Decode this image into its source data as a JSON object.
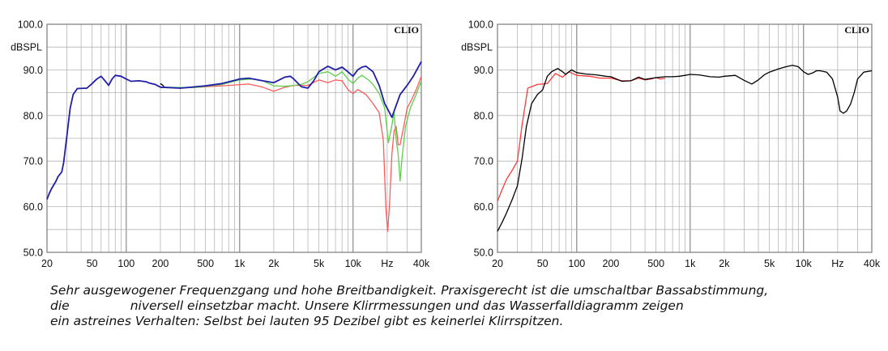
{
  "chart_data": [
    {
      "type": "line",
      "brand": "CLIO",
      "ylabel": "dBSPL",
      "xscale": "log",
      "xlim": [
        20,
        40000
      ],
      "ylim": [
        50,
        100
      ],
      "yticks": [
        "100.0",
        "90.0",
        "80.0",
        "70.0",
        "60.0",
        "50.0"
      ],
      "xticks": [
        {
          "f": 20,
          "label": "20"
        },
        {
          "f": 50,
          "label": "50"
        },
        {
          "f": 100,
          "label": "100"
        },
        {
          "f": 200,
          "label": "200"
        },
        {
          "f": 500,
          "label": "500"
        },
        {
          "f": 1000,
          "label": "1k"
        },
        {
          "f": 2000,
          "label": "2k"
        },
        {
          "f": 5000,
          "label": "5k"
        },
        {
          "f": 10000,
          "label": "10k"
        },
        {
          "f": 20000,
          "label": "Hz"
        },
        {
          "f": 40000,
          "label": "40k"
        }
      ],
      "grid": true,
      "series": [
        {
          "color": "#ff5a5a",
          "points": [
            [
              200,
              86.2
            ],
            [
              300,
              86.0
            ],
            [
              500,
              86.3
            ],
            [
              800,
              86.6
            ],
            [
              1200,
              86.9
            ],
            [
              1600,
              86.2
            ],
            [
              2000,
              85.3
            ],
            [
              2500,
              86.2
            ],
            [
              3000,
              86.6
            ],
            [
              4000,
              86.6
            ],
            [
              5000,
              87.8
            ],
            [
              6000,
              87.2
            ],
            [
              7000,
              87.8
            ],
            [
              8000,
              87.6
            ],
            [
              9000,
              85.7
            ],
            [
              10000,
              84.8
            ],
            [
              11000,
              85.7
            ],
            [
              13000,
              84.6
            ],
            [
              15000,
              82.6
            ],
            [
              17000,
              80.6
            ],
            [
              18500,
              74.6
            ],
            [
              19500,
              59.6
            ],
            [
              20200,
              54.6
            ],
            [
              21000,
              60.6
            ],
            [
              22000,
              71.6
            ],
            [
              23000,
              76.6
            ],
            [
              24000,
              77.6
            ],
            [
              25000,
              73.6
            ],
            [
              26000,
              73.6
            ],
            [
              28000,
              77.6
            ],
            [
              30000,
              81.6
            ],
            [
              33000,
              83.6
            ],
            [
              36000,
              85.6
            ],
            [
              40000,
              88.6
            ]
          ]
        },
        {
          "color": "#5fcf4a",
          "points": [
            [
              200,
              86.2
            ],
            [
              400,
              86.1
            ],
            [
              700,
              86.8
            ],
            [
              1000,
              87.8
            ],
            [
              1300,
              88.0
            ],
            [
              1600,
              87.6
            ],
            [
              2000,
              86.5
            ],
            [
              2500,
              86.4
            ],
            [
              3000,
              86.6
            ],
            [
              3500,
              86.8
            ],
            [
              4000,
              87.4
            ],
            [
              5000,
              89.2
            ],
            [
              6000,
              89.6
            ],
            [
              7000,
              88.6
            ],
            [
              8000,
              89.6
            ],
            [
              9000,
              88.0
            ],
            [
              10000,
              87.0
            ],
            [
              11000,
              88.2
            ],
            [
              12000,
              88.8
            ],
            [
              14000,
              87.6
            ],
            [
              15000,
              86.8
            ],
            [
              17000,
              84.8
            ],
            [
              19000,
              81.6
            ],
            [
              20500,
              74.0
            ],
            [
              21500,
              76.5
            ],
            [
              23000,
              80.6
            ],
            [
              24000,
              74.6
            ],
            [
              25000,
              71.6
            ],
            [
              26000,
              65.6
            ],
            [
              27000,
              70.6
            ],
            [
              29000,
              77.6
            ],
            [
              32000,
              81.6
            ],
            [
              36000,
              84.6
            ],
            [
              40000,
              87.6
            ]
          ]
        },
        {
          "color": "#000000",
          "points": [
            [
              200,
              87.0
            ],
            [
              215,
              86.4
            ]
          ]
        },
        {
          "color": "#1f1fa8",
          "points": [
            [
              20,
              61.6
            ],
            [
              21,
              63.0
            ],
            [
              22,
              64.0
            ],
            [
              24,
              65.6
            ],
            [
              25,
              66.6
            ],
            [
              27,
              67.6
            ],
            [
              28,
              69.6
            ],
            [
              30,
              75.6
            ],
            [
              32,
              81.6
            ],
            [
              34,
              84.6
            ],
            [
              37,
              85.9
            ],
            [
              45,
              86.0
            ],
            [
              50,
              87.0
            ],
            [
              55,
              88.0
            ],
            [
              60,
              88.6
            ],
            [
              65,
              87.6
            ],
            [
              70,
              86.6
            ],
            [
              75,
              88.0
            ],
            [
              80,
              88.8
            ],
            [
              90,
              88.6
            ],
            [
              100,
              88.0
            ],
            [
              110,
              87.5
            ],
            [
              130,
              87.6
            ],
            [
              150,
              87.4
            ],
            [
              160,
              87.1
            ],
            [
              180,
              86.8
            ],
            [
              200,
              86.2
            ],
            [
              300,
              86.0
            ],
            [
              500,
              86.5
            ],
            [
              700,
              87.0
            ],
            [
              1000,
              88.0
            ],
            [
              1200,
              88.2
            ],
            [
              1600,
              87.6
            ],
            [
              2000,
              87.2
            ],
            [
              2500,
              88.4
            ],
            [
              2800,
              88.6
            ],
            [
              3000,
              88.0
            ],
            [
              3500,
              86.3
            ],
            [
              4000,
              86.0
            ],
            [
              4500,
              87.6
            ],
            [
              5000,
              89.6
            ],
            [
              6000,
              90.8
            ],
            [
              7000,
              90.0
            ],
            [
              8000,
              90.6
            ],
            [
              9000,
              89.6
            ],
            [
              10000,
              88.6
            ],
            [
              11000,
              90.0
            ],
            [
              12000,
              90.6
            ],
            [
              13000,
              90.8
            ],
            [
              15000,
              89.6
            ],
            [
              17000,
              86.6
            ],
            [
              19000,
              82.6
            ],
            [
              21000,
              80.6
            ],
            [
              22000,
              79.6
            ],
            [
              23500,
              81.6
            ],
            [
              26000,
              84.6
            ],
            [
              30000,
              86.6
            ],
            [
              34000,
              88.6
            ],
            [
              40000,
              91.8
            ]
          ]
        }
      ]
    },
    {
      "type": "line",
      "brand": "CLIO",
      "ylabel": "dBSPL",
      "xscale": "log",
      "xlim": [
        20,
        40000
      ],
      "ylim": [
        50,
        100
      ],
      "yticks": [
        "100.0",
        "90.0",
        "80.0",
        "70.0",
        "60.0",
        "50.0"
      ],
      "xticks": [
        {
          "f": 20,
          "label": "20"
        },
        {
          "f": 50,
          "label": "50"
        },
        {
          "f": 100,
          "label": "100"
        },
        {
          "f": 200,
          "label": "200"
        },
        {
          "f": 500,
          "label": "500"
        },
        {
          "f": 1000,
          "label": "1k"
        },
        {
          "f": 2000,
          "label": "2k"
        },
        {
          "f": 5000,
          "label": "5k"
        },
        {
          "f": 10000,
          "label": "10k"
        },
        {
          "f": 20000,
          "label": "Hz"
        },
        {
          "f": 40000,
          "label": "40k"
        }
      ],
      "grid": true,
      "series": [
        {
          "color": "#ff3a3a",
          "points": [
            [
              20,
              61.2
            ],
            [
              22,
              63.8
            ],
            [
              24,
              66.0
            ],
            [
              27,
              68.0
            ],
            [
              30,
              70.0
            ],
            [
              33,
              78.0
            ],
            [
              37,
              86.0
            ],
            [
              45,
              86.8
            ],
            [
              55,
              87.0
            ],
            [
              65,
              89.2
            ],
            [
              75,
              88.4
            ],
            [
              85,
              89.6
            ],
            [
              100,
              88.8
            ],
            [
              130,
              88.6
            ],
            [
              160,
              88.2
            ],
            [
              200,
              88.2
            ],
            [
              250,
              87.6
            ],
            [
              300,
              87.6
            ],
            [
              350,
              88.2
            ],
            [
              400,
              87.8
            ],
            [
              450,
              88.0
            ],
            [
              500,
              88.3
            ],
            [
              550,
              88.0
            ],
            [
              600,
              88.2
            ]
          ]
        },
        {
          "color": "#000000",
          "points": [
            [
              20,
              54.6
            ],
            [
              22,
              56.6
            ],
            [
              24,
              58.6
            ],
            [
              27,
              61.6
            ],
            [
              30,
              64.6
            ],
            [
              33,
              70.6
            ],
            [
              36,
              77.6
            ],
            [
              40,
              82.6
            ],
            [
              45,
              84.6
            ],
            [
              50,
              85.6
            ],
            [
              55,
              88.6
            ],
            [
              60,
              89.6
            ],
            [
              68,
              90.3
            ],
            [
              75,
              89.6
            ],
            [
              80,
              89.0
            ],
            [
              90,
              90.0
            ],
            [
              100,
              89.4
            ],
            [
              120,
              89.1
            ],
            [
              150,
              88.9
            ],
            [
              180,
              88.6
            ],
            [
              200,
              88.5
            ],
            [
              250,
              87.5
            ],
            [
              300,
              87.6
            ],
            [
              350,
              88.4
            ],
            [
              400,
              87.9
            ],
            [
              500,
              88.3
            ],
            [
              600,
              88.5
            ],
            [
              700,
              88.5
            ],
            [
              800,
              88.6
            ],
            [
              900,
              88.8
            ],
            [
              1000,
              89.0
            ],
            [
              1200,
              88.9
            ],
            [
              1500,
              88.5
            ],
            [
              1800,
              88.4
            ],
            [
              2000,
              88.6
            ],
            [
              2500,
              88.8
            ],
            [
              3000,
              87.7
            ],
            [
              3500,
              86.9
            ],
            [
              4000,
              87.8
            ],
            [
              4500,
              88.9
            ],
            [
              5000,
              89.5
            ],
            [
              6000,
              90.2
            ],
            [
              7000,
              90.7
            ],
            [
              8000,
              91.0
            ],
            [
              9000,
              90.7
            ],
            [
              10000,
              89.6
            ],
            [
              11000,
              89.0
            ],
            [
              12000,
              89.3
            ],
            [
              13000,
              89.8
            ],
            [
              14000,
              89.8
            ],
            [
              16000,
              89.5
            ],
            [
              18000,
              88.0
            ],
            [
              20000,
              84.0
            ],
            [
              21000,
              81.0
            ],
            [
              22500,
              80.5
            ],
            [
              24000,
              81.0
            ],
            [
              26000,
              82.5
            ],
            [
              28000,
              85.0
            ],
            [
              30000,
              88.0
            ],
            [
              34000,
              89.5
            ],
            [
              40000,
              89.8
            ]
          ]
        }
      ]
    }
  ],
  "caption": {
    "line1": "Sehr ausgewogener Frequenzgang und hohe Breitbandigkeit. Praxisgerecht ist die umschaltbar Bassabstimmung,",
    "line2a": "die",
    "line2b": "niversell einsetzbar macht. Unsere Klirrmessungen und das Wasserfalldiagramm zeigen",
    "line3": "ein astreines Verhalten: Selbst bei lauten 95 Dezibel gibt es keinerlei Klirrspitzen."
  }
}
